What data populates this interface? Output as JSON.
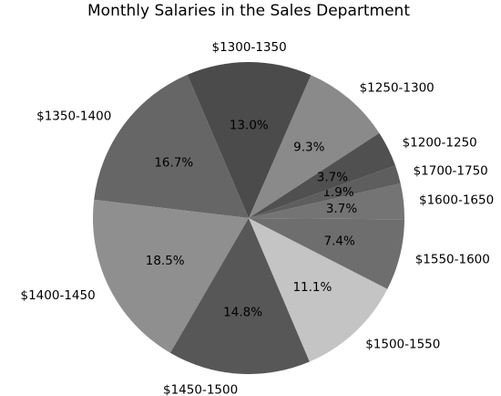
{
  "chart_data": {
    "type": "pie",
    "title": "Monthly Salaries in the Sales Department",
    "start_angle_deg": 33,
    "direction": "counterclockwise",
    "slices": [
      {
        "label": "$1250-1300",
        "value": 9.3,
        "pct_label": "9.3%",
        "color": "#8a8a8a"
      },
      {
        "label": "$1300-1350",
        "value": 13.0,
        "pct_label": "13.0%",
        "color": "#4b4b4b"
      },
      {
        "label": "$1350-1400",
        "value": 16.7,
        "pct_label": "16.7%",
        "color": "#666666"
      },
      {
        "label": "$1400-1450",
        "value": 18.5,
        "pct_label": "18.5%",
        "color": "#8f8f8f"
      },
      {
        "label": "$1450-1500",
        "value": 14.8,
        "pct_label": "14.8%",
        "color": "#575757"
      },
      {
        "label": "$1500-1550",
        "value": 11.1,
        "pct_label": "11.1%",
        "color": "#c4c4c4"
      },
      {
        "label": "$1550-1600",
        "value": 7.4,
        "pct_label": "7.4%",
        "color": "#6e6e6e"
      },
      {
        "label": "$1600-1650",
        "value": 3.7,
        "pct_label": "3.7%",
        "color": "#747474"
      },
      {
        "label": "$1700-1750",
        "value": 1.9,
        "pct_label": "1.9%",
        "color": "#5e5e5e"
      },
      {
        "label": "$1200-1250",
        "value": 3.7,
        "pct_label": "3.7%",
        "color": "#505050"
      }
    ]
  }
}
